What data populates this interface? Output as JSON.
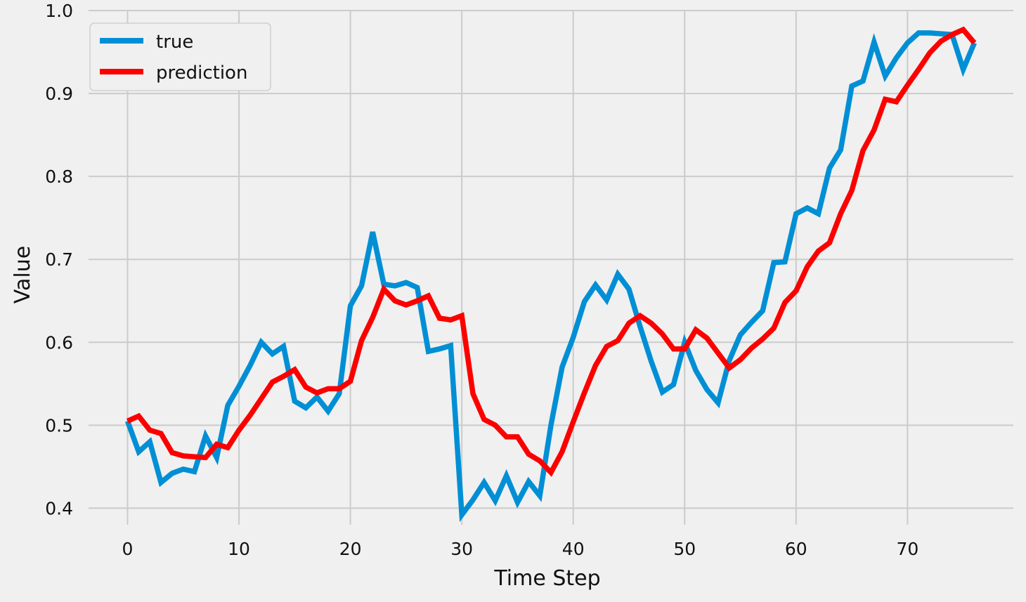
{
  "chart_data": {
    "type": "line",
    "title": "",
    "xlabel": "Time Step",
    "ylabel": "Value",
    "xlim": [
      -3.5,
      79.5
    ],
    "ylim": [
      0.38,
      1.0
    ],
    "xticks": [
      0,
      10,
      20,
      30,
      40,
      50,
      60,
      70
    ],
    "yticks": [
      0.4,
      0.5,
      0.6,
      0.7,
      0.8,
      0.9,
      1.0
    ],
    "xtick_labels": [
      "0",
      "10",
      "20",
      "30",
      "40",
      "50",
      "60",
      "70"
    ],
    "ytick_labels": [
      "0.4",
      "0.5",
      "0.6",
      "0.7",
      "0.8",
      "0.9",
      "1.0"
    ],
    "grid": true,
    "legend_position": "top-left",
    "x": [
      0,
      1,
      2,
      3,
      4,
      5,
      6,
      7,
      8,
      9,
      10,
      11,
      12,
      13,
      14,
      15,
      16,
      17,
      18,
      19,
      20,
      21,
      22,
      23,
      24,
      25,
      26,
      27,
      28,
      29,
      30,
      31,
      32,
      33,
      34,
      35,
      36,
      37,
      38,
      39,
      40,
      41,
      42,
      43,
      44,
      45,
      46,
      47,
      48,
      49,
      50,
      51,
      52,
      53,
      54,
      55,
      56,
      57,
      58,
      59,
      60,
      61,
      62,
      63,
      64,
      65,
      66,
      67,
      68,
      69,
      70,
      71,
      72,
      73,
      74,
      75,
      76
    ],
    "series": [
      {
        "name": "true",
        "color": "#008fd5",
        "values": [
          0.505,
          0.468,
          0.48,
          0.431,
          0.442,
          0.447,
          0.444,
          0.487,
          0.461,
          0.524,
          0.547,
          0.572,
          0.6,
          0.586,
          0.595,
          0.529,
          0.521,
          0.534,
          0.517,
          0.538,
          0.644,
          0.668,
          0.733,
          0.67,
          0.668,
          0.672,
          0.666,
          0.589,
          0.592,
          0.596,
          0.392,
          0.41,
          0.431,
          0.409,
          0.439,
          0.407,
          0.432,
          0.415,
          0.5,
          0.57,
          0.606,
          0.649,
          0.669,
          0.651,
          0.682,
          0.664,
          0.619,
          0.577,
          0.54,
          0.549,
          0.6,
          0.566,
          0.543,
          0.527,
          0.578,
          0.609,
          0.624,
          0.638,
          0.696,
          0.697,
          0.755,
          0.762,
          0.755,
          0.81,
          0.832,
          0.909,
          0.915,
          0.962,
          0.921,
          0.943,
          0.961,
          0.973,
          0.973,
          0.972,
          0.971,
          0.929,
          0.961
        ]
      },
      {
        "name": "prediction",
        "color": "#fc0000",
        "values": [
          0.505,
          0.511,
          0.494,
          0.49,
          0.467,
          0.463,
          0.462,
          0.461,
          0.477,
          0.473,
          0.494,
          0.512,
          0.532,
          0.552,
          0.559,
          0.567,
          0.546,
          0.539,
          0.544,
          0.544,
          0.553,
          0.602,
          0.63,
          0.664,
          0.65,
          0.645,
          0.65,
          0.656,
          0.629,
          0.627,
          0.632,
          0.538,
          0.507,
          0.5,
          0.486,
          0.486,
          0.465,
          0.457,
          0.443,
          0.468,
          0.504,
          0.539,
          0.572,
          0.595,
          0.602,
          0.623,
          0.632,
          0.623,
          0.61,
          0.592,
          0.592,
          0.615,
          0.605,
          0.587,
          0.569,
          0.579,
          0.593,
          0.604,
          0.617,
          0.648,
          0.662,
          0.691,
          0.71,
          0.72,
          0.755,
          0.783,
          0.831,
          0.856,
          0.893,
          0.89,
          0.91,
          0.929,
          0.949,
          0.963,
          0.971,
          0.977,
          0.961
        ]
      }
    ]
  }
}
